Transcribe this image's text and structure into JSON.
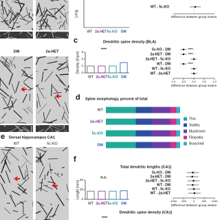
{
  "group_colors": [
    "#555555",
    "#7a2a8c",
    "#178a7e",
    "#2457a6"
  ],
  "images": {
    "labels_top": [
      "DM",
      "2a-HET"
    ],
    "panel_e": {
      "letter": "e",
      "title": "Dorsal hippocampus CA1",
      "labels": [
        "WT",
        "5c-KO"
      ]
    }
  },
  "panel_b": {
    "y_label": "Leng",
    "categories": [
      "WT",
      "2a-HET",
      "5c-KO",
      "DM"
    ],
    "comparisons": [
      {
        "label": "WT - 5c-KO",
        "diff": 0.1,
        "error": 0.4
      }
    ],
    "xlim": [
      -1.5,
      1.5
    ],
    "x_label": "Difference between group means"
  },
  "panel_c": {
    "letter": "c",
    "title": "Dendritic spine density (BLA)",
    "significance": "****",
    "y_label": "Density (#/μm)",
    "categories": [
      "WT",
      "2a-HET",
      "5c-KO",
      "DM"
    ],
    "values": [
      1.0,
      1.0,
      1.0,
      1.5
    ],
    "ylim": [
      0,
      3
    ],
    "yticks": [
      0,
      1,
      2,
      3
    ],
    "comparisons": [
      {
        "label": "5c-KO - DM",
        "diff": -0.5,
        "error": 0.15,
        "note": "****"
      },
      {
        "label": "2a-HET - DM",
        "diff": -0.5,
        "error": 0.15,
        "note": "****"
      },
      {
        "label": "2a-HET - 5c-KO",
        "diff": 0.0,
        "error": 0.15
      },
      {
        "label": "WT - DM",
        "diff": -0.5,
        "error": 0.15,
        "note": "****"
      },
      {
        "label": "WT - 5c-KO",
        "diff": 0.0,
        "error": 0.15
      },
      {
        "label": "WT - 2a-HET",
        "diff": 0.0,
        "error": 0.15
      }
    ],
    "xlim": [
      -1,
      1
    ],
    "xticks": [
      {
        "value": -1,
        "label": "-1.0"
      },
      {
        "value": -0.5,
        "label": "-0.5"
      },
      {
        "value": 0,
        "label": "0.0"
      },
      {
        "value": 0.5,
        "label": "0.5"
      },
      {
        "value": 1,
        "label": "1.0"
      }
    ],
    "x_label": "Difference between group means"
  },
  "panel_d": {
    "letter": "d",
    "title": "Spine morphology, percent of total",
    "categories": [
      "WT",
      "2a-HET",
      "5c-KO",
      "DM"
    ],
    "xlim": [
      0,
      100
    ],
    "series": [
      {
        "name": "Thin",
        "color": "#22a99a",
        "values": [
          40,
          40,
          40,
          40
        ]
      },
      {
        "name": "Stubby",
        "color": "#2d4fa0",
        "values": [
          22,
          22,
          22,
          22
        ]
      },
      {
        "name": "Mushroom",
        "color": "#6b3fa0",
        "values": [
          25,
          25,
          25,
          25
        ]
      },
      {
        "name": "Filopodia",
        "color": "#d0308a",
        "values": [
          8,
          8,
          8,
          8
        ]
      },
      {
        "name": "Branched",
        "color": "#2fb2c4",
        "values": [
          5,
          5,
          5,
          5
        ]
      }
    ]
  },
  "panel_f": {
    "letter": "f",
    "title": "Total dendritic lengths (CA1)",
    "significance": "n.s.",
    "y_label": "Length (mm)",
    "categories": [
      "WT",
      "2a-HET",
      "5c-KO",
      "DM"
    ],
    "values": [
      17,
      17,
      17,
      18
    ],
    "ylim": [
      0,
      40
    ],
    "yticks": [
      0,
      20,
      40
    ],
    "comparisons": [
      {
        "label": "5c-KO - DM",
        "diff": -50,
        "error": 300
      },
      {
        "label": "2a-HET - DM",
        "diff": -80,
        "error": 300
      },
      {
        "label": "2a-HET - 5c-KO",
        "diff": -20,
        "error": 300
      },
      {
        "label": "WT - DM",
        "diff": -60,
        "error": 300
      },
      {
        "label": "WT - 5c-KO",
        "diff": 0,
        "error": 300
      },
      {
        "label": "WT - 2a-HET",
        "diff": 30,
        "error": 300
      }
    ],
    "xlim": [
      -1000,
      1000
    ],
    "xticks": [
      -1000,
      -500,
      0,
      500,
      1000
    ],
    "x_label": "Difference between group means"
  },
  "panel_g": {
    "title": "Dendritic spine density (CA1)",
    "significance": "****"
  }
}
